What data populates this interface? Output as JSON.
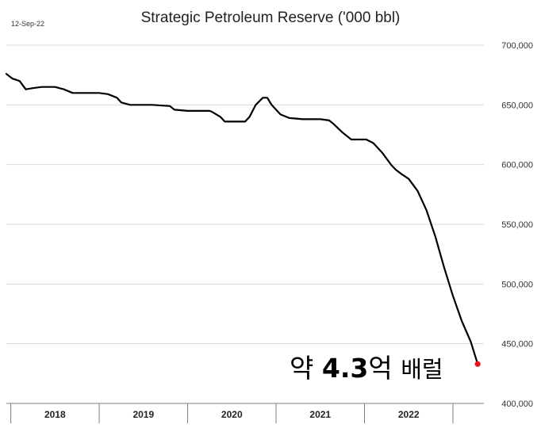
{
  "header": {
    "date": "12-Sep-22",
    "title": "Strategic Petroleum Reserve ('000 bbl)"
  },
  "annotation": {
    "prefix": "약 ",
    "number": "4.3",
    "suffix": "억 ",
    "unit": "배럴"
  },
  "chart_data": {
    "type": "line",
    "title": "Strategic Petroleum Reserve ('000 bbl)",
    "xlabel": "",
    "ylabel": "",
    "ylim": [
      400000,
      700000
    ],
    "y_ticks": [
      "700,000",
      "650,000",
      "600,000",
      "550,000",
      "500,000",
      "450,000",
      "400,000"
    ],
    "x_ticks": [
      "2018",
      "2019",
      "2020",
      "2021",
      "2022"
    ],
    "xlim": [
      2017.45,
      2022.85
    ],
    "grid": true,
    "line_color": "#000000",
    "endpoint_color": "#e8151e",
    "series": [
      {
        "x": [
          2017.45,
          2017.52,
          2017.6,
          2017.67,
          2017.75,
          2017.85,
          2018.0,
          2018.1,
          2018.2,
          2018.3,
          2018.35,
          2018.5,
          2018.6,
          2018.7,
          2018.75,
          2018.85,
          2018.95,
          2019.1,
          2019.3,
          2019.35,
          2019.5,
          2019.75,
          2019.78,
          2019.87,
          2019.92,
          2020.1,
          2020.15,
          2020.2,
          2020.27,
          2020.35,
          2020.4,
          2020.45,
          2020.5,
          2020.55,
          2020.65,
          2020.8,
          2021.0,
          2021.1,
          2021.15,
          2021.25,
          2021.35,
          2021.45,
          2021.52,
          2021.6,
          2021.7,
          2021.8,
          2021.85,
          2021.92,
          2022.0,
          2022.1,
          2022.2,
          2022.3,
          2022.4,
          2022.5,
          2022.6,
          2022.7,
          2022.78
        ],
        "y": [
          676000,
          672000,
          670000,
          663000,
          664000,
          665000,
          665000,
          663000,
          660000,
          660000,
          660000,
          660000,
          659000,
          656000,
          652000,
          650000,
          650000,
          650000,
          649000,
          646000,
          645000,
          645000,
          644000,
          640000,
          636000,
          636000,
          636000,
          640000,
          650000,
          656000,
          656000,
          650000,
          646000,
          642000,
          639000,
          638000,
          638000,
          637000,
          634000,
          627000,
          621000,
          621000,
          621000,
          618000,
          610000,
          600000,
          596000,
          592000,
          588000,
          578000,
          562000,
          540000,
          514000,
          490000,
          469000,
          452000,
          433000
        ]
      }
    ]
  }
}
